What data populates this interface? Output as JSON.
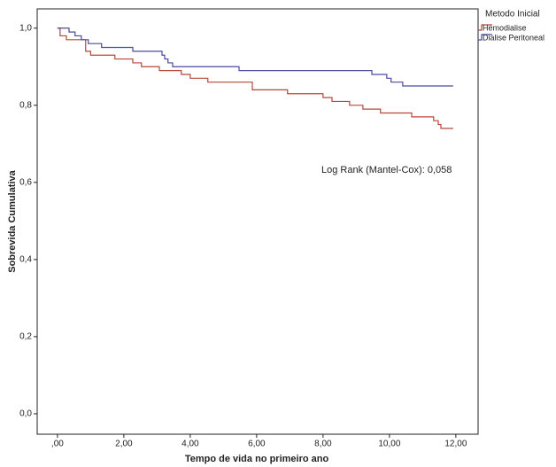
{
  "chart_data": {
    "type": "step",
    "x_label": "Tempo de vida no primeiro ano",
    "y_label": "Sobrevida Cumulativa",
    "legend_title": "Metodo Inicial",
    "annotation": "Log Rank (Mantel-Cox): 0,058",
    "xlim": [
      -0.61,
      12.67
    ],
    "ylim": [
      -0.053,
      1.05
    ],
    "xticks": [
      {
        "value": 0,
        "label": ",00"
      },
      {
        "value": 2,
        "label": "2,00"
      },
      {
        "value": 4,
        "label": "4,00"
      },
      {
        "value": 6,
        "label": "6,00"
      },
      {
        "value": 8,
        "label": "8,00"
      },
      {
        "value": 10,
        "label": "10,00"
      },
      {
        "value": 12,
        "label": "12,00"
      }
    ],
    "yticks": [
      {
        "value": 0,
        "label": "0,0"
      },
      {
        "value": 0.2,
        "label": "0,2"
      },
      {
        "value": 0.4,
        "label": "0,4"
      },
      {
        "value": 0.6,
        "label": "0,6"
      },
      {
        "value": 0.8,
        "label": "0,8"
      },
      {
        "value": 1,
        "label": "1,0"
      }
    ],
    "series": [
      {
        "name": "Hemodialise",
        "color": "#b5473a",
        "x": [
          0,
          0.08,
          0.27,
          0.85,
          1.0,
          1.73,
          2.27,
          2.53,
          3.07,
          3.73,
          4.0,
          4.53,
          5.87,
          6.93,
          8.0,
          8.27,
          8.8,
          9.2,
          9.73,
          10.67,
          11.33,
          11.47,
          11.55,
          11.92
        ],
        "values": [
          1.0,
          0.98,
          0.97,
          0.94,
          0.93,
          0.92,
          0.91,
          0.9,
          0.89,
          0.88,
          0.87,
          0.86,
          0.84,
          0.83,
          0.82,
          0.81,
          0.8,
          0.79,
          0.78,
          0.77,
          0.76,
          0.75,
          0.74,
          0.74
        ]
      },
      {
        "name": "Dialise Peritoneal",
        "color": "#4a4aa0",
        "x": [
          0,
          0.35,
          0.53,
          0.72,
          0.93,
          1.33,
          2.27,
          3.15,
          3.23,
          3.33,
          3.47,
          5.47,
          9.47,
          9.92,
          10.05,
          10.4,
          11.92
        ],
        "values": [
          1.0,
          0.99,
          0.98,
          0.97,
          0.96,
          0.95,
          0.94,
          0.93,
          0.92,
          0.91,
          0.9,
          0.89,
          0.88,
          0.87,
          0.86,
          0.85,
          0.85
        ]
      }
    ]
  }
}
